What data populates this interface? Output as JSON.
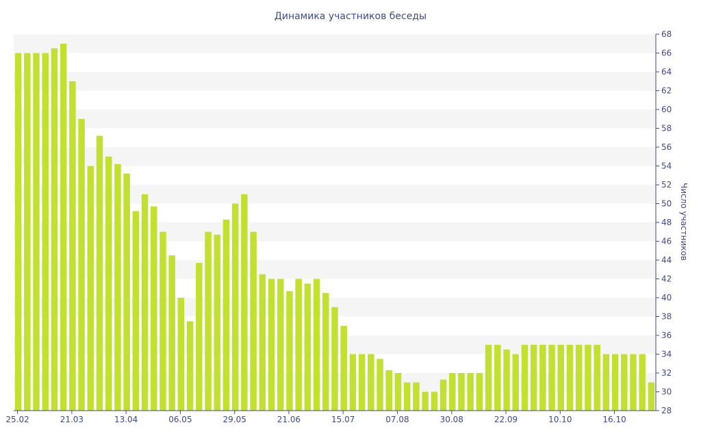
{
  "chart_data": {
    "type": "bar",
    "title": "Динамика участников беседы",
    "ylabel": "Число участников",
    "xlabel": "",
    "ylim": [
      28,
      68
    ],
    "y_ticks": [
      28,
      30,
      32,
      34,
      36,
      38,
      40,
      42,
      44,
      46,
      48,
      50,
      52,
      54,
      56,
      58,
      60,
      62,
      64,
      66,
      68
    ],
    "y_axis_side": "right",
    "x_tick_labels": [
      "25.02",
      "21.03",
      "13.04",
      "06.05",
      "29.05",
      "21.06",
      "15.07",
      "07.08",
      "30.08",
      "22.09",
      "10.10",
      "16.10"
    ],
    "x_tick_indices": [
      0,
      6,
      12,
      18,
      24,
      30,
      36,
      42,
      48,
      54,
      60,
      66
    ],
    "bar_color": "#c2e032",
    "band_color": "#f5f5f5",
    "text_color": "#3e4a8a",
    "axis_color": "#3e4a8a",
    "values": [
      66,
      66,
      66,
      66,
      66.5,
      67,
      63,
      59,
      54,
      57.2,
      55,
      54.2,
      53.2,
      49.2,
      51,
      49.7,
      47,
      44.5,
      40,
      37.5,
      43.7,
      47,
      46.7,
      48.3,
      50,
      51,
      47,
      42.5,
      42,
      42,
      40.7,
      42,
      41.5,
      42,
      40.5,
      39,
      37,
      34,
      34,
      34,
      33.5,
      32.3,
      32,
      31,
      31,
      30,
      30,
      31.3,
      32,
      32,
      32,
      32,
      35,
      35,
      34.5,
      34,
      35,
      35,
      35,
      35,
      35,
      35,
      35,
      35,
      35,
      34,
      34,
      34,
      34,
      34,
      31
    ]
  }
}
